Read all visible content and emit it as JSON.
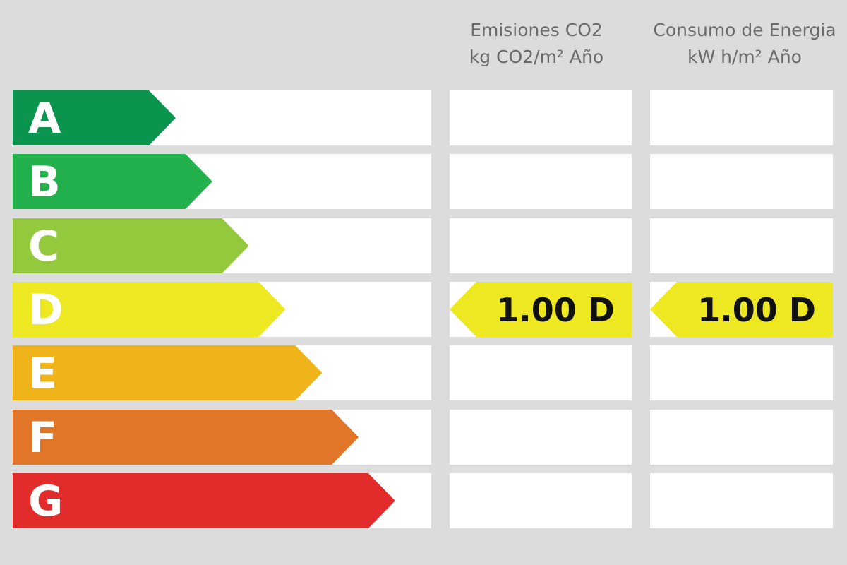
{
  "headers": {
    "emisiones": {
      "line1": "Emisiones CO2",
      "line2": "kg CO2/m² Año"
    },
    "consumo": {
      "line1": "Consumo de Energia",
      "line2": "kW h/m² Año"
    }
  },
  "chart_data": {
    "type": "table",
    "classes": [
      {
        "letter": "A",
        "color": "#0a944e"
      },
      {
        "letter": "B",
        "color": "#22b14c"
      },
      {
        "letter": "C",
        "color": "#95c93d"
      },
      {
        "letter": "D",
        "color": "#eee823"
      },
      {
        "letter": "E",
        "color": "#f0b41b"
      },
      {
        "letter": "F",
        "color": "#e17528"
      },
      {
        "letter": "G",
        "color": "#e22b2b"
      }
    ],
    "emisiones": {
      "value": "1.00",
      "class": "D",
      "label": "1.00 D"
    },
    "consumo": {
      "value": "1.00",
      "class": "D",
      "label": "1.00 D"
    }
  }
}
